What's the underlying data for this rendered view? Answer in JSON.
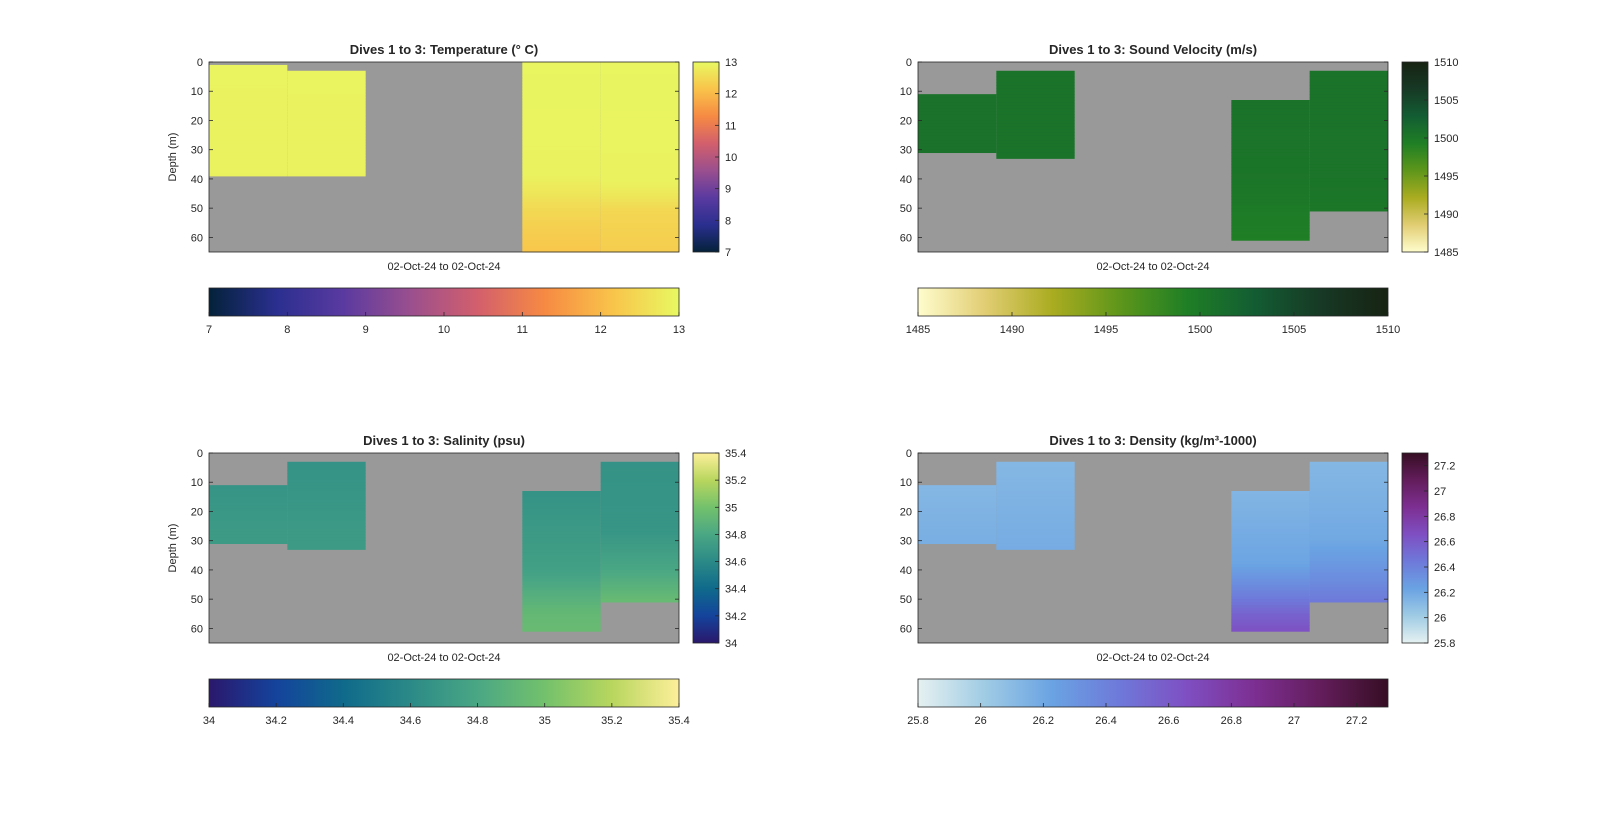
{
  "figure": {
    "background": "#ffffff",
    "nan_color": "#999999"
  },
  "chart_data": [
    {
      "type": "heatmap",
      "title": "Dives 1 to 3: Temperature (° C)",
      "xlabel": "02-Oct-24 to 02-Oct-24",
      "ylabel": "Depth (m)",
      "y_ticks": [
        0,
        10,
        20,
        30,
        40,
        50,
        60
      ],
      "ylim": [
        0,
        65
      ],
      "colorbar_ticks": [
        7,
        8,
        9,
        10,
        11,
        12,
        13
      ],
      "colorbar_ticks_horizontal": [
        7,
        8,
        9,
        10,
        11,
        12,
        13
      ],
      "clim": [
        7,
        13
      ],
      "colormap": "thermal",
      "colormap_stops": [
        "#04223a",
        "#2a2f8f",
        "#5a3aa0",
        "#9a4f8e",
        "#d35f6c",
        "#f68a43",
        "#f9c34a",
        "#e8f962"
      ],
      "casts": [
        {
          "x_start": 0,
          "x_end": 1,
          "depth_top": 1,
          "depth_bottom": 39,
          "profile": [
            [
              0,
              12.92
            ],
            [
              39,
              12.88
            ]
          ]
        },
        {
          "x_start": 1,
          "x_end": 2,
          "depth_top": 3,
          "depth_bottom": 39,
          "profile": [
            [
              3,
              12.92
            ],
            [
              39,
              12.88
            ]
          ]
        },
        {
          "x_start": 4,
          "x_end": 5,
          "depth_top": 0,
          "depth_bottom": 65,
          "profile": [
            [
              0,
              12.95
            ],
            [
              38,
              12.9
            ],
            [
              45,
              12.7
            ],
            [
              50,
              12.5
            ],
            [
              56,
              12.35
            ],
            [
              65,
              12.2
            ]
          ]
        },
        {
          "x_start": 5,
          "x_end": 6,
          "depth_top": 0,
          "depth_bottom": 65,
          "profile": [
            [
              0,
              12.95
            ],
            [
              40,
              12.9
            ],
            [
              45,
              12.75
            ],
            [
              51,
              12.45
            ],
            [
              65,
              12.3
            ]
          ]
        }
      ]
    },
    {
      "type": "heatmap",
      "title": "Dives 1 to 3: Sound Velocity (m/s)",
      "xlabel": "02-Oct-24 to 02-Oct-24",
      "ylabel": "",
      "y_ticks": [
        0,
        10,
        20,
        30,
        40,
        50,
        60
      ],
      "ylim": [
        0,
        65
      ],
      "colorbar_ticks": [
        1485,
        1490,
        1495,
        1500,
        1505,
        1510
      ],
      "colorbar_ticks_horizontal": [
        1485,
        1490,
        1495,
        1500,
        1505,
        1510
      ],
      "clim": [
        1485,
        1510
      ],
      "colormap": "speed",
      "colormap_stops": [
        "#fffdcd",
        "#e1cd73",
        "#aaac20",
        "#5e961b",
        "#1f7f25",
        "#135d33",
        "#173925",
        "#172313"
      ],
      "casts": [
        {
          "x_start": 0,
          "x_end": 1,
          "depth_top": 11,
          "depth_bottom": 31,
          "profile": [
            [
              11,
              1500.6
            ],
            [
              31,
              1500.6
            ]
          ]
        },
        {
          "x_start": 1,
          "x_end": 2,
          "depth_top": 3,
          "depth_bottom": 33,
          "profile": [
            [
              3,
              1500.6
            ],
            [
              33,
              1500.5
            ]
          ]
        },
        {
          "x_start": 4,
          "x_end": 5,
          "depth_top": 13,
          "depth_bottom": 61,
          "profile": [
            [
              13,
              1500.6
            ],
            [
              40,
              1500.3
            ],
            [
              50,
              1499.8
            ],
            [
              61,
              1499.3
            ]
          ]
        },
        {
          "x_start": 5,
          "x_end": 6,
          "depth_top": 3,
          "depth_bottom": 51,
          "profile": [
            [
              3,
              1500.6
            ],
            [
              40,
              1500.4
            ],
            [
              51,
              1500.1
            ]
          ]
        }
      ]
    },
    {
      "type": "heatmap",
      "title": "Dives 1 to 3: Salinity (psu)",
      "xlabel": "02-Oct-24 to 02-Oct-24",
      "ylabel": "Depth (m)",
      "y_ticks": [
        0,
        10,
        20,
        30,
        40,
        50,
        60
      ],
      "ylim": [
        0,
        65
      ],
      "colorbar_ticks": [
        34,
        34.2,
        34.4,
        34.6,
        34.8,
        35,
        35.2,
        35.4
      ],
      "colorbar_ticks_horizontal": [
        34,
        34.2,
        34.4,
        34.6,
        34.8,
        35,
        35.2,
        35.4
      ],
      "clim": [
        34,
        35.4
      ],
      "colormap": "haline",
      "colormap_stops": [
        "#2a186c",
        "#14439c",
        "#0f6a8b",
        "#2b8a87",
        "#4aa784",
        "#73c16c",
        "#b8d65e",
        "#fdef9a"
      ],
      "casts": [
        {
          "x_start": 0,
          "x_end": 1,
          "depth_top": 11,
          "depth_bottom": 31,
          "profile": [
            [
              11,
              34.67
            ],
            [
              31,
              34.72
            ]
          ]
        },
        {
          "x_start": 1,
          "x_end": 2,
          "depth_top": 3,
          "depth_bottom": 33,
          "profile": [
            [
              3,
              34.66
            ],
            [
              33,
              34.72
            ]
          ]
        },
        {
          "x_start": 4,
          "x_end": 5,
          "depth_top": 13,
          "depth_bottom": 61,
          "profile": [
            [
              13,
              34.66
            ],
            [
              40,
              34.75
            ],
            [
              48,
              34.85
            ],
            [
              55,
              34.93
            ],
            [
              61,
              34.95
            ]
          ]
        },
        {
          "x_start": 5,
          "x_end": 6,
          "depth_top": 3,
          "depth_bottom": 51,
          "profile": [
            [
              3,
              34.66
            ],
            [
              27,
              34.68
            ],
            [
              40,
              34.8
            ],
            [
              51,
              34.95
            ]
          ]
        }
      ]
    },
    {
      "type": "heatmap",
      "title": "Dives 1 to 3: Density (kg/m³-1000)",
      "xlabel": "02-Oct-24 to 02-Oct-24",
      "ylabel": "",
      "y_ticks": [
        0,
        10,
        20,
        30,
        40,
        50,
        60
      ],
      "ylim": [
        0,
        65
      ],
      "colorbar_ticks": [
        25.8,
        26,
        26.2,
        26.4,
        26.6,
        26.8,
        27,
        27.2
      ],
      "colorbar_ticks_horizontal": [
        25.8,
        26,
        26.2,
        26.4,
        26.6,
        26.8,
        27,
        27.2
      ],
      "clim": [
        25.8,
        27.3
      ],
      "colormap": "dense",
      "colormap_stops": [
        "#e6f1f1",
        "#9fcbe4",
        "#6aa3e3",
        "#6e79d9",
        "#7f4fc2",
        "#7d2f92",
        "#631d5b",
        "#360e24"
      ],
      "casts": [
        {
          "x_start": 0,
          "x_end": 1,
          "depth_top": 11,
          "depth_bottom": 31,
          "profile": [
            [
              11,
              26.12
            ],
            [
              31,
              26.17
            ]
          ]
        },
        {
          "x_start": 1,
          "x_end": 2,
          "depth_top": 3,
          "depth_bottom": 33,
          "profile": [
            [
              3,
              26.12
            ],
            [
              33,
              26.18
            ]
          ]
        },
        {
          "x_start": 4,
          "x_end": 5,
          "depth_top": 13,
          "depth_bottom": 61,
          "profile": [
            [
              13,
              26.13
            ],
            [
              38,
              26.22
            ],
            [
              48,
              26.4
            ],
            [
              55,
              26.55
            ],
            [
              61,
              26.65
            ]
          ]
        },
        {
          "x_start": 5,
          "x_end": 6,
          "depth_top": 3,
          "depth_bottom": 51,
          "profile": [
            [
              3,
              26.12
            ],
            [
              30,
              26.2
            ],
            [
              44,
              26.35
            ],
            [
              51,
              26.45
            ]
          ]
        }
      ]
    }
  ]
}
